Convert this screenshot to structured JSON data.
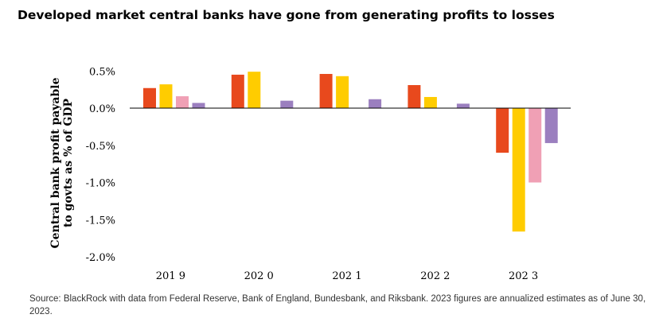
{
  "title": "Developed market central banks have gone from generating profits to losses",
  "source": "Source: BlackRock with data from Federal Reserve, Bank of England, Bundesbank, and Riksbank. 2023 figures are annualized estimates as of June 30, 2023.",
  "chart_data": {
    "type": "bar",
    "title": "Developed market central banks have gone from generating profits to losses",
    "ylabel_lines": [
      "Central bank profit payable",
      "to govts as % of GDP"
    ],
    "xlabel": "",
    "categories": [
      "201 9",
      "202 0",
      "202 1",
      "202 2",
      "202 3"
    ],
    "ylim": [
      -2.0,
      0.5
    ],
    "yticks": [
      0.5,
      0.0,
      -0.5,
      -1.0,
      -1.5,
      -2.0
    ],
    "ytick_labels": [
      "0.5%",
      "0.0%",
      "-0.5%",
      "-1.0%",
      "-1.5%",
      "-2.0%"
    ],
    "grid": false,
    "legend": "none",
    "series": [
      {
        "color": "#e8491d",
        "values": [
          0.27,
          0.45,
          0.46,
          0.31,
          -0.6
        ]
      },
      {
        "color": "#ffcc00",
        "values": [
          0.32,
          0.49,
          0.43,
          0.15,
          -1.66
        ]
      },
      {
        "color": "#f0a0b5",
        "values": [
          0.16,
          null,
          null,
          null,
          -1.0
        ]
      },
      {
        "color": "#9b7fbf",
        "values": [
          0.07,
          0.1,
          0.12,
          0.06,
          -0.47
        ]
      }
    ]
  }
}
